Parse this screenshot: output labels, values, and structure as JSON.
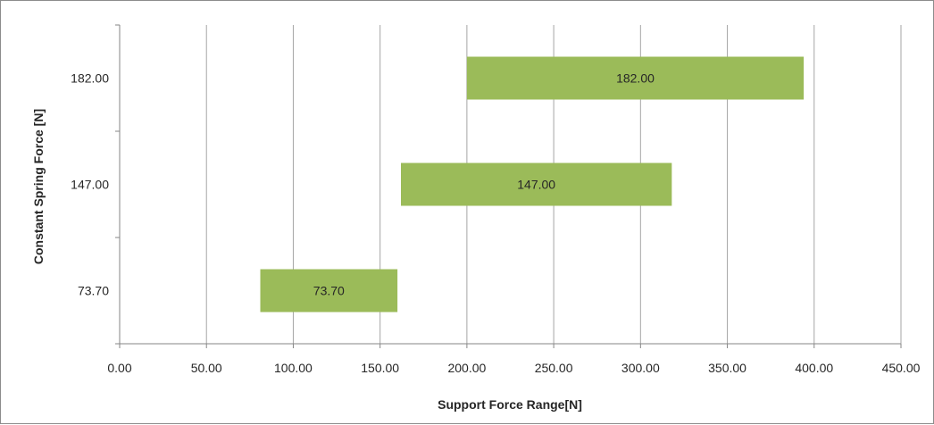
{
  "chart_data": {
    "type": "bar",
    "orientation": "horizontal",
    "subtype": "floating-range",
    "title": "",
    "xlabel": "Support Force Range[N]",
    "ylabel": "Constant Spring Force [N]",
    "xlim": [
      0,
      450
    ],
    "xticks": [
      "0.00",
      "50.00",
      "100.00",
      "150.00",
      "200.00",
      "250.00",
      "300.00",
      "350.00",
      "400.00",
      "450.00"
    ],
    "categories": [
      "73.70",
      "147.00",
      "182.00"
    ],
    "ranges": [
      {
        "category": "73.70",
        "start": 81,
        "end": 160,
        "label": "73.70"
      },
      {
        "category": "147.00",
        "start": 162,
        "end": 318,
        "label": "147.00"
      },
      {
        "category": "182.00",
        "start": 200,
        "end": 394,
        "label": "182.00"
      }
    ],
    "grid": {
      "vertical": true,
      "horizontal": false
    },
    "legend": "none",
    "colors": {
      "bar": "#9bbb59",
      "grid": "#a6a6a6",
      "axis": "#868686",
      "text": "#262626"
    }
  }
}
